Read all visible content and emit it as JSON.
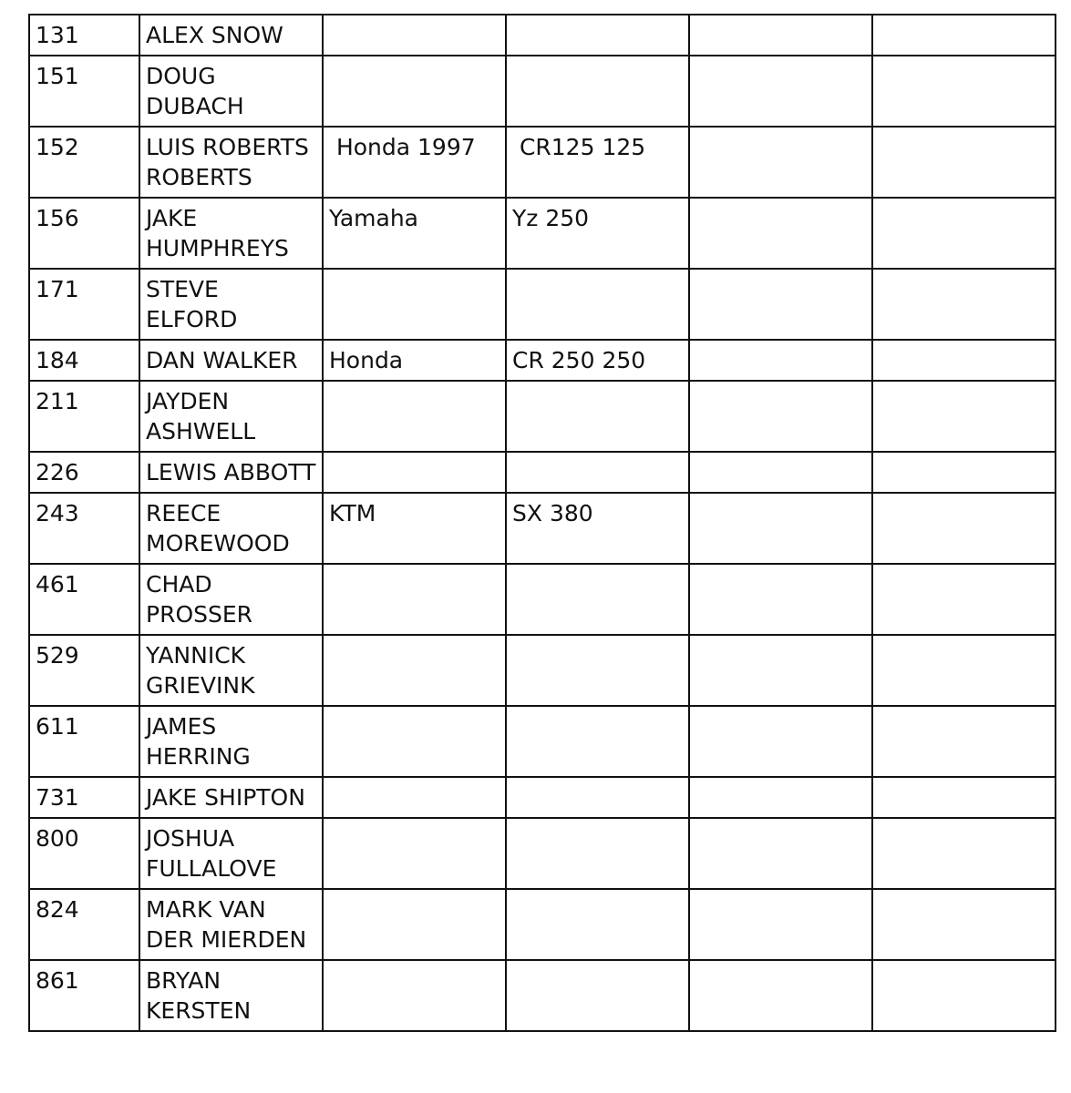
{
  "rows": [
    {
      "number": "131",
      "name": "ALEX SNOW",
      "make": "",
      "model": ""
    },
    {
      "number": "151",
      "name": "DOUG DUBACH",
      "make": "",
      "model": ""
    },
    {
      "number": "152",
      "name": "LUIS ROBERTS ROBERTS",
      "make": " Honda 1997",
      "model": " CR125 125"
    },
    {
      "number": "156",
      "name": "JAKE HUMPHREYS",
      "make": "Yamaha",
      "model": "Yz 250"
    },
    {
      "number": "171",
      "name": "STEVE ELFORD",
      "make": "",
      "model": ""
    },
    {
      "number": "184",
      "name": "DAN WALKER",
      "make": "Honda",
      "model": "CR 250 250"
    },
    {
      "number": "211",
      "name": "JAYDEN ASHWELL",
      "make": "",
      "model": ""
    },
    {
      "number": "226",
      "name": "LEWIS ABBOTT",
      "make": "",
      "model": ""
    },
    {
      "number": "243",
      "name": "REECE MOREWOOD",
      "make": "KTM",
      "model": "SX 380"
    },
    {
      "number": "461",
      "name": "CHAD PROSSER",
      "make": "",
      "model": ""
    },
    {
      "number": "529",
      "name": "YANNICK GRIEVINK",
      "make": "",
      "model": ""
    },
    {
      "number": "611",
      "name": "JAMES HERRING",
      "make": "",
      "model": ""
    },
    {
      "number": "731",
      "name": "JAKE SHIPTON",
      "make": "",
      "model": ""
    },
    {
      "number": "800",
      "name": "JOSHUA FULLALOVE",
      "make": "",
      "model": ""
    },
    {
      "number": "824",
      "name": "MARK VAN DER MIERDEN",
      "make": "",
      "model": ""
    },
    {
      "number": "861",
      "name": "BRYAN KERSTEN",
      "make": "",
      "model": ""
    }
  ]
}
